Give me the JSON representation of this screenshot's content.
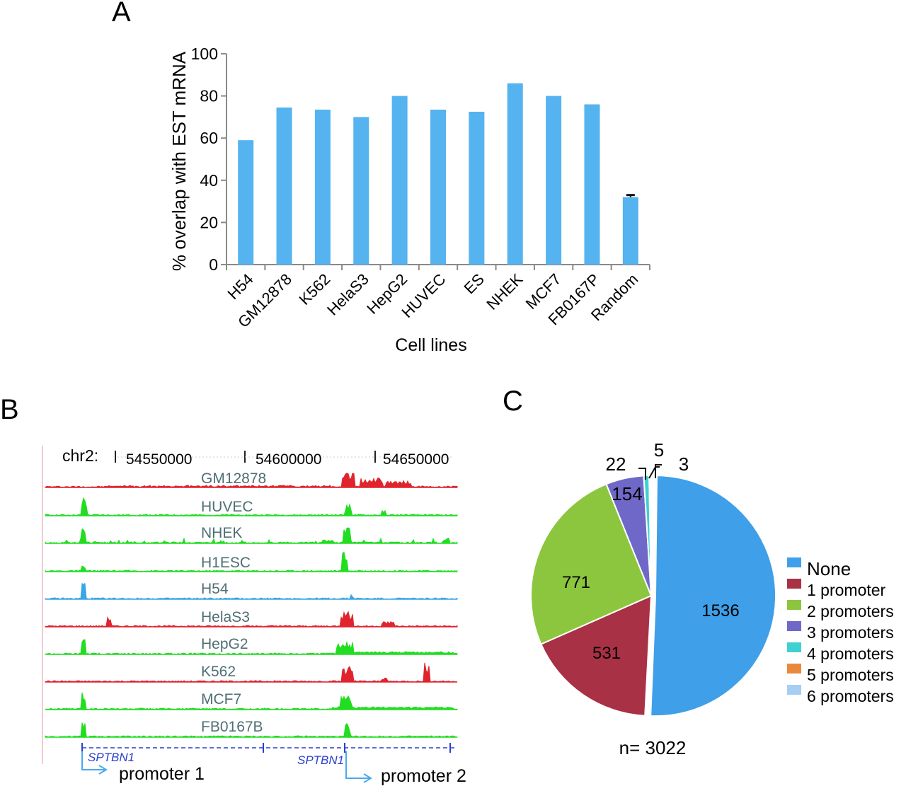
{
  "panel_a": {
    "letter": "A",
    "chart_data": {
      "type": "bar",
      "categories": [
        "H54",
        "GM12878",
        "K562",
        "HelaS3",
        "HepG2",
        "HUVEC",
        "ES",
        "NHEK",
        "MCF7",
        "FB0167P",
        "Random"
      ],
      "values": [
        59,
        74.5,
        73.5,
        70,
        80,
        73.5,
        72.5,
        86,
        80,
        76,
        32
      ],
      "error": [
        0,
        0,
        0,
        0,
        0,
        0,
        0,
        0,
        0,
        0,
        1
      ],
      "ylabel": "% overlap with EST mRNA",
      "xlabel": "Cell lines",
      "ylim": [
        0,
        100
      ],
      "yticks": [
        "0",
        "20",
        "40",
        "60",
        "80",
        "100"
      ],
      "bar_color": "#55b3f0",
      "grid": false
    }
  },
  "panel_b": {
    "letter": "B",
    "chrom_label": "chr2:",
    "coords": [
      "54550000",
      "54600000",
      "54650000"
    ],
    "tracks": [
      {
        "name": "GM12878",
        "color": "#e0242e"
      },
      {
        "name": "HUVEC",
        "color": "#22dd22"
      },
      {
        "name": "NHEK",
        "color": "#22dd22"
      },
      {
        "name": "H1ESC",
        "color": "#22dd22"
      },
      {
        "name": "H54",
        "color": "#3aa6e6"
      },
      {
        "name": "HelaS3",
        "color": "#e0242e"
      },
      {
        "name": "HepG2",
        "color": "#22dd22"
      },
      {
        "name": "K562",
        "color": "#e0242e"
      },
      {
        "name": "MCF7",
        "color": "#22dd22"
      },
      {
        "name": "FB0167B",
        "color": "#22dd22"
      }
    ],
    "gene1": "SPTBN1",
    "gene2": "SPTBN1",
    "promoter1": "promoter 1",
    "promoter2": "promoter 2"
  },
  "panel_c": {
    "letter": "C",
    "chart_data": {
      "type": "pie",
      "labels": [
        "None",
        "1 promoter",
        "2 promoters",
        "3 promoters",
        "4 promoters",
        "5 promoters",
        "6 promoters"
      ],
      "values": [
        1536,
        531,
        771,
        154,
        22,
        5,
        3
      ],
      "colors": [
        "#3f9fe8",
        "#a83145",
        "#8cc63e",
        "#7068c8",
        "#3fd1d1",
        "#e8893e",
        "#a7cdf2"
      ],
      "legend_position": "right",
      "n_label": "n= 3022"
    },
    "slice_labels": [
      "1536",
      "531",
      "771",
      "154",
      "22",
      "5",
      "3"
    ]
  }
}
